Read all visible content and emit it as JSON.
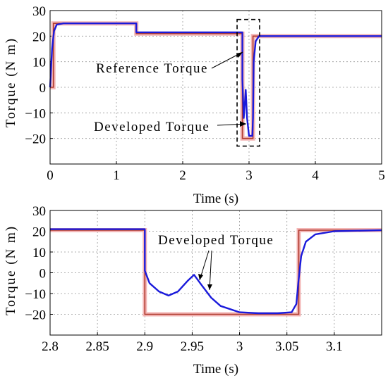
{
  "chart_data": [
    {
      "type": "line",
      "xlabel": "Time (s)",
      "ylabel": "Torque (N m)",
      "xlim": [
        0,
        5
      ],
      "ylim": [
        -30,
        30
      ],
      "xticks": [
        0,
        1,
        2,
        3,
        4,
        5
      ],
      "yticks": [
        30,
        20,
        10,
        0,
        -10,
        -20
      ],
      "grid": true,
      "series": [
        {
          "color": "#b03a2e",
          "x": [
            0,
            0.05,
            0.05,
            1.3,
            1.3,
            2.9,
            2.9,
            3.06,
            3.06,
            5
          ],
          "y": [
            0,
            0,
            25,
            25,
            21,
            21,
            -20,
            -20,
            20,
            20
          ]
        },
        {
          "color": "#1a1adb",
          "x": [
            0,
            0.03,
            0.06,
            0.1,
            0.2,
            0.4,
            1.3,
            1.3,
            2.9,
            2.9,
            2.92,
            2.94,
            2.95,
            2.97,
            3.0,
            3.05,
            3.06,
            3.07,
            3.1,
            3.15,
            5
          ],
          "y": [
            0,
            15,
            22,
            24.5,
            25,
            25,
            25,
            21.5,
            21.5,
            3,
            -12,
            -5,
            -1,
            -12,
            -19,
            -19,
            -12,
            10,
            18,
            20,
            20
          ]
        }
      ],
      "annotations": [
        {
          "text": "Reference Torque"
        },
        {
          "text": "Developed Torque"
        }
      ],
      "highlight_box": {
        "x": [
          2.82,
          3.16
        ],
        "y": [
          -23,
          26.5
        ]
      }
    },
    {
      "type": "line",
      "xlabel": "Time (s)",
      "ylabel": "Torque (N m)",
      "xlim": [
        2.8,
        3.15
      ],
      "ylim": [
        -30,
        30
      ],
      "xticks": [
        2.8,
        2.85,
        2.9,
        2.95,
        3,
        3.05,
        3.1
      ],
      "yticks": [
        30,
        20,
        10,
        0,
        -10,
        -20
      ],
      "grid": true,
      "series": [
        {
          "color": "#b03a2e",
          "x": [
            2.8,
            2.9,
            2.9,
            3.0625,
            3.0625,
            3.15
          ],
          "y": [
            20.5,
            20.5,
            -20,
            -20,
            20.5,
            20.5
          ]
        },
        {
          "color": "#1a1adb",
          "x": [
            2.8,
            2.9,
            2.9,
            2.905,
            2.915,
            2.925,
            2.935,
            2.945,
            2.952,
            2.96,
            2.97,
            2.98,
            3.0,
            3.02,
            3.04,
            3.055,
            3.06,
            3.062,
            3.065,
            3.07,
            3.08,
            3.1,
            3.15
          ],
          "y": [
            21,
            21,
            1,
            -5,
            -9,
            -11,
            -9,
            -4,
            -1,
            -6,
            -12,
            -16,
            -19,
            -19.5,
            -19.5,
            -19,
            -15,
            -5,
            8,
            15,
            18.5,
            20,
            20.5
          ]
        }
      ],
      "annotations": [
        {
          "text": "Developed Torque"
        }
      ]
    }
  ]
}
